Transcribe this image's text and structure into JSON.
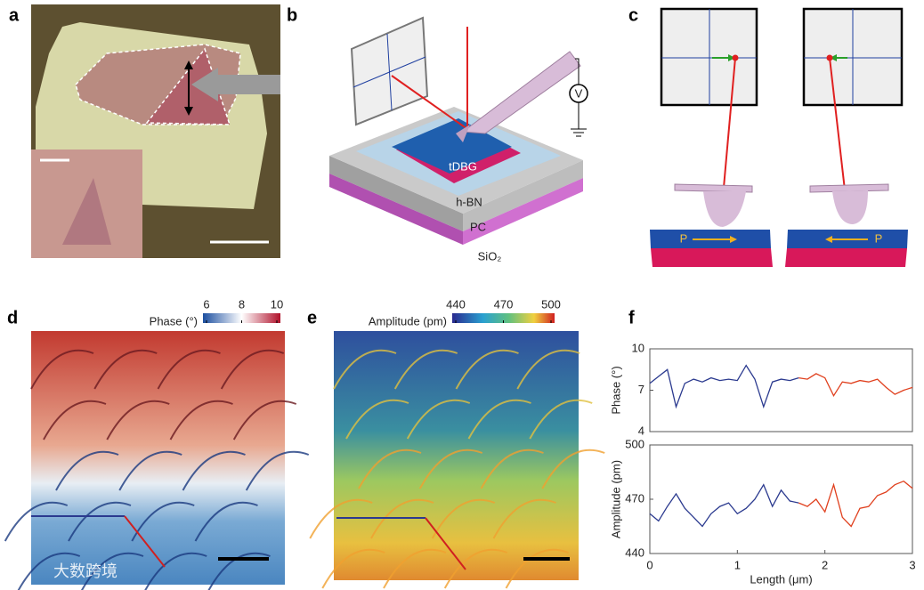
{
  "panels": [
    "a",
    "b",
    "c",
    "d",
    "e",
    "f"
  ],
  "schematic": {
    "layers": [
      "tDBG",
      "h-BN",
      "PC",
      "SiO₂"
    ],
    "voltmeter": "V",
    "polarization": [
      "P",
      "P"
    ]
  },
  "colorbars": [
    {
      "label": "Phase (°)",
      "lim": [
        6,
        10
      ],
      "ticks": [
        6,
        8,
        10
      ]
    },
    {
      "label": "Amplitude (pm)",
      "lim": [
        440,
        500
      ],
      "ticks": [
        440,
        470,
        500
      ]
    }
  ],
  "watermark": "大数跨境",
  "chart_data": [
    {
      "type": "line",
      "ylabel": "Phase (°)",
      "x": [
        0,
        0.1,
        0.2,
        0.3,
        0.4,
        0.5,
        0.6,
        0.7,
        0.8,
        0.9,
        1.0,
        1.1,
        1.2,
        1.3,
        1.4,
        1.5,
        1.6,
        1.7,
        1.8,
        1.9,
        2.0,
        2.1,
        2.2,
        2.3,
        2.4,
        2.5,
        2.6,
        2.7,
        2.8,
        2.9,
        3.0
      ],
      "xlim": [
        0,
        3
      ],
      "ylim": [
        4,
        10
      ],
      "yticks": [
        4,
        7,
        10
      ],
      "series": [
        {
          "color": "#2b3a8f",
          "values": [
            7.5,
            8.0,
            8.5,
            5.8,
            7.5,
            7.8,
            7.6,
            7.9,
            7.7,
            7.8,
            7.7,
            8.8,
            7.8,
            5.8,
            7.6,
            7.8,
            7.7,
            7.9,
            null,
            null,
            null,
            null,
            null,
            null,
            null,
            null,
            null,
            null,
            null,
            null,
            null
          ]
        },
        {
          "color": "#e0401e",
          "values": [
            null,
            null,
            null,
            null,
            null,
            null,
            null,
            null,
            null,
            null,
            null,
            null,
            null,
            null,
            null,
            null,
            null,
            7.9,
            7.8,
            8.2,
            7.9,
            6.6,
            7.6,
            7.5,
            7.7,
            7.6,
            7.8,
            7.2,
            6.7,
            7.0,
            7.2
          ]
        }
      ]
    },
    {
      "type": "line",
      "ylabel": "Amplitude (pm)",
      "xlabel": "Length (μm)",
      "x": [
        0,
        0.1,
        0.2,
        0.3,
        0.4,
        0.5,
        0.6,
        0.7,
        0.8,
        0.9,
        1.0,
        1.1,
        1.2,
        1.3,
        1.4,
        1.5,
        1.6,
        1.7,
        1.8,
        1.9,
        2.0,
        2.1,
        2.2,
        2.3,
        2.4,
        2.5,
        2.6,
        2.7,
        2.8,
        2.9,
        3.0
      ],
      "xlim": [
        0,
        3
      ],
      "xticks": [
        0,
        1,
        2,
        3
      ],
      "ylim": [
        440,
        500
      ],
      "yticks": [
        440,
        470,
        500
      ],
      "series": [
        {
          "color": "#2b3a8f",
          "values": [
            462,
            458,
            466,
            473,
            465,
            460,
            455,
            462,
            466,
            468,
            462,
            465,
            470,
            478,
            466,
            475,
            469,
            468,
            null,
            null,
            null,
            null,
            null,
            null,
            null,
            null,
            null,
            null,
            null,
            null,
            null
          ]
        },
        {
          "color": "#e0401e",
          "values": [
            null,
            null,
            null,
            null,
            null,
            null,
            null,
            null,
            null,
            null,
            null,
            null,
            null,
            null,
            null,
            null,
            null,
            468,
            466,
            470,
            463,
            478,
            460,
            455,
            465,
            466,
            472,
            474,
            478,
            480,
            476
          ]
        }
      ]
    }
  ]
}
